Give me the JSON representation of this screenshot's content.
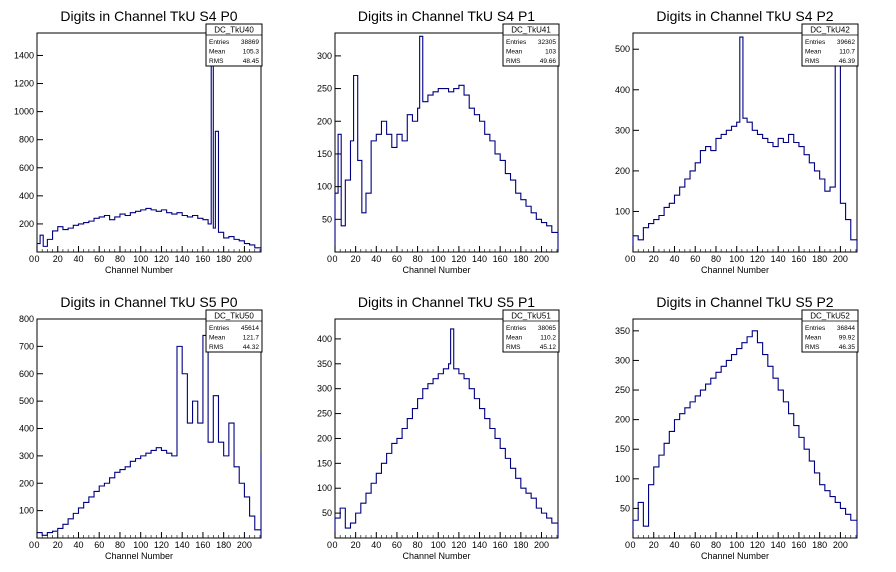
{
  "chart_data": [
    {
      "type": "histogram",
      "title": "Digits in Channel TkU S4 P0",
      "xlabel": "Channel Number",
      "xlim": [
        0,
        216
      ],
      "ylim": [
        0,
        1560
      ],
      "xticks": [
        0,
        20,
        40,
        60,
        80,
        100,
        120,
        140,
        160,
        180,
        200
      ],
      "yticks": [
        200,
        400,
        600,
        800,
        1000,
        1200,
        1400
      ],
      "color": "#000080",
      "stats": {
        "name": "DC_TkU40",
        "entries": "38869",
        "mean": "105.3",
        "rms": "48.45"
      },
      "series_points": [
        [
          0,
          60
        ],
        [
          3,
          120
        ],
        [
          6,
          40
        ],
        [
          10,
          90
        ],
        [
          15,
          150
        ],
        [
          20,
          180
        ],
        [
          25,
          160
        ],
        [
          30,
          170
        ],
        [
          35,
          190
        ],
        [
          40,
          200
        ],
        [
          45,
          210
        ],
        [
          50,
          220
        ],
        [
          55,
          240
        ],
        [
          60,
          250
        ],
        [
          65,
          260
        ],
        [
          70,
          230
        ],
        [
          75,
          250
        ],
        [
          80,
          270
        ],
        [
          85,
          260
        ],
        [
          90,
          280
        ],
        [
          95,
          290
        ],
        [
          100,
          300
        ],
        [
          105,
          310
        ],
        [
          110,
          300
        ],
        [
          115,
          290
        ],
        [
          120,
          300
        ],
        [
          125,
          280
        ],
        [
          130,
          270
        ],
        [
          135,
          280
        ],
        [
          140,
          260
        ],
        [
          145,
          250
        ],
        [
          150,
          260
        ],
        [
          155,
          240
        ],
        [
          160,
          230
        ],
        [
          165,
          200
        ],
        [
          168,
          1520
        ],
        [
          170,
          170
        ],
        [
          172,
          860
        ],
        [
          175,
          140
        ],
        [
          180,
          100
        ],
        [
          185,
          110
        ],
        [
          190,
          90
        ],
        [
          195,
          80
        ],
        [
          200,
          60
        ],
        [
          205,
          50
        ],
        [
          210,
          30
        ],
        [
          216,
          20
        ]
      ]
    },
    {
      "type": "histogram",
      "title": "Digits in Channel TkU S4 P1",
      "xlabel": "Channel Number",
      "xlim": [
        0,
        216
      ],
      "ylim": [
        0,
        335
      ],
      "xticks": [
        0,
        20,
        40,
        60,
        80,
        100,
        120,
        140,
        160,
        180,
        200
      ],
      "yticks": [
        50,
        100,
        150,
        200,
        250,
        300
      ],
      "color": "#000080",
      "stats": {
        "name": "DC_TkU41",
        "entries": "32305",
        "mean": "103",
        "rms": "49.66"
      },
      "series_points": [
        [
          0,
          90
        ],
        [
          3,
          180
        ],
        [
          6,
          40
        ],
        [
          10,
          110
        ],
        [
          15,
          170
        ],
        [
          18,
          270
        ],
        [
          22,
          140
        ],
        [
          26,
          60
        ],
        [
          30,
          90
        ],
        [
          35,
          170
        ],
        [
          40,
          180
        ],
        [
          45,
          200
        ],
        [
          50,
          180
        ],
        [
          55,
          160
        ],
        [
          60,
          180
        ],
        [
          65,
          170
        ],
        [
          70,
          210
        ],
        [
          75,
          200
        ],
        [
          80,
          220
        ],
        [
          82,
          330
        ],
        [
          85,
          230
        ],
        [
          90,
          240
        ],
        [
          95,
          245
        ],
        [
          100,
          250
        ],
        [
          105,
          250
        ],
        [
          110,
          245
        ],
        [
          115,
          250
        ],
        [
          120,
          255
        ],
        [
          125,
          240
        ],
        [
          130,
          220
        ],
        [
          135,
          210
        ],
        [
          140,
          200
        ],
        [
          145,
          180
        ],
        [
          150,
          170
        ],
        [
          155,
          150
        ],
        [
          160,
          140
        ],
        [
          165,
          120
        ],
        [
          170,
          110
        ],
        [
          175,
          90
        ],
        [
          180,
          80
        ],
        [
          185,
          70
        ],
        [
          190,
          60
        ],
        [
          195,
          50
        ],
        [
          200,
          45
        ],
        [
          205,
          40
        ],
        [
          210,
          30
        ],
        [
          216,
          25
        ]
      ]
    },
    {
      "type": "histogram",
      "title": "Digits in Channel TkU S4 P2",
      "xlabel": "Channel Number",
      "xlim": [
        0,
        216
      ],
      "ylim": [
        0,
        540
      ],
      "xticks": [
        0,
        20,
        40,
        60,
        80,
        100,
        120,
        140,
        160,
        180,
        200
      ],
      "yticks": [
        100,
        200,
        300,
        400,
        500
      ],
      "color": "#000080",
      "stats": {
        "name": "DC_TkU42",
        "entries": "39662",
        "mean": "110.7",
        "rms": "46.39"
      },
      "series_points": [
        [
          0,
          40
        ],
        [
          5,
          30
        ],
        [
          10,
          60
        ],
        [
          15,
          70
        ],
        [
          20,
          80
        ],
        [
          25,
          90
        ],
        [
          30,
          110
        ],
        [
          35,
          120
        ],
        [
          40,
          140
        ],
        [
          45,
          160
        ],
        [
          50,
          180
        ],
        [
          55,
          200
        ],
        [
          60,
          220
        ],
        [
          65,
          250
        ],
        [
          70,
          260
        ],
        [
          75,
          250
        ],
        [
          80,
          280
        ],
        [
          85,
          290
        ],
        [
          90,
          300
        ],
        [
          95,
          310
        ],
        [
          100,
          320
        ],
        [
          103,
          530
        ],
        [
          106,
          330
        ],
        [
          110,
          320
        ],
        [
          115,
          300
        ],
        [
          120,
          290
        ],
        [
          125,
          280
        ],
        [
          130,
          270
        ],
        [
          135,
          260
        ],
        [
          140,
          280
        ],
        [
          145,
          270
        ],
        [
          150,
          290
        ],
        [
          155,
          270
        ],
        [
          160,
          260
        ],
        [
          165,
          240
        ],
        [
          170,
          220
        ],
        [
          175,
          200
        ],
        [
          180,
          180
        ],
        [
          185,
          150
        ],
        [
          190,
          160
        ],
        [
          195,
          460
        ],
        [
          200,
          120
        ],
        [
          205,
          80
        ],
        [
          210,
          30
        ],
        [
          216,
          20
        ]
      ]
    },
    {
      "type": "histogram",
      "title": "Digits in Channel TkU S5 P0",
      "xlabel": "Channel Number",
      "xlim": [
        0,
        216
      ],
      "ylim": [
        0,
        800
      ],
      "xticks": [
        0,
        20,
        40,
        60,
        80,
        100,
        120,
        140,
        160,
        180,
        200
      ],
      "yticks": [
        100,
        200,
        300,
        400,
        500,
        600,
        700,
        800
      ],
      "color": "#000080",
      "stats": {
        "name": "DC_TkU50",
        "entries": "45614",
        "mean": "121.7",
        "rms": "44.32"
      },
      "series_points": [
        [
          0,
          20
        ],
        [
          5,
          10
        ],
        [
          10,
          20
        ],
        [
          15,
          25
        ],
        [
          20,
          35
        ],
        [
          25,
          50
        ],
        [
          30,
          70
        ],
        [
          35,
          90
        ],
        [
          40,
          110
        ],
        [
          45,
          130
        ],
        [
          50,
          150
        ],
        [
          55,
          170
        ],
        [
          60,
          190
        ],
        [
          65,
          200
        ],
        [
          70,
          220
        ],
        [
          75,
          240
        ],
        [
          80,
          250
        ],
        [
          85,
          260
        ],
        [
          90,
          280
        ],
        [
          95,
          290
        ],
        [
          100,
          300
        ],
        [
          105,
          310
        ],
        [
          110,
          320
        ],
        [
          115,
          330
        ],
        [
          120,
          320
        ],
        [
          125,
          310
        ],
        [
          130,
          300
        ],
        [
          135,
          700
        ],
        [
          140,
          600
        ],
        [
          145,
          420
        ],
        [
          150,
          500
        ],
        [
          155,
          420
        ],
        [
          160,
          740
        ],
        [
          165,
          350
        ],
        [
          170,
          520
        ],
        [
          175,
          350
        ],
        [
          180,
          300
        ],
        [
          185,
          420
        ],
        [
          190,
          260
        ],
        [
          195,
          200
        ],
        [
          200,
          150
        ],
        [
          205,
          80
        ],
        [
          210,
          30
        ],
        [
          216,
          310
        ]
      ]
    },
    {
      "type": "histogram",
      "title": "Digits in Channel TkU S5 P1",
      "xlabel": "Channel Number",
      "xlim": [
        0,
        216
      ],
      "ylim": [
        0,
        440
      ],
      "xticks": [
        0,
        20,
        40,
        60,
        80,
        100,
        120,
        140,
        160,
        180,
        200
      ],
      "yticks": [
        50,
        100,
        150,
        200,
        250,
        300,
        350,
        400
      ],
      "color": "#000080",
      "stats": {
        "name": "DC_TkU51",
        "entries": "38065",
        "mean": "110.2",
        "rms": "45.12"
      },
      "series_points": [
        [
          0,
          40
        ],
        [
          5,
          60
        ],
        [
          10,
          20
        ],
        [
          15,
          30
        ],
        [
          20,
          50
        ],
        [
          25,
          70
        ],
        [
          30,
          90
        ],
        [
          35,
          110
        ],
        [
          40,
          130
        ],
        [
          45,
          150
        ],
        [
          50,
          170
        ],
        [
          55,
          190
        ],
        [
          60,
          200
        ],
        [
          65,
          220
        ],
        [
          70,
          240
        ],
        [
          75,
          260
        ],
        [
          80,
          280
        ],
        [
          85,
          300
        ],
        [
          90,
          310
        ],
        [
          95,
          320
        ],
        [
          100,
          330
        ],
        [
          105,
          340
        ],
        [
          110,
          350
        ],
        [
          112,
          420
        ],
        [
          115,
          340
        ],
        [
          120,
          330
        ],
        [
          125,
          320
        ],
        [
          130,
          300
        ],
        [
          135,
          280
        ],
        [
          140,
          260
        ],
        [
          145,
          240
        ],
        [
          150,
          220
        ],
        [
          155,
          200
        ],
        [
          160,
          180
        ],
        [
          165,
          160
        ],
        [
          170,
          140
        ],
        [
          175,
          120
        ],
        [
          180,
          100
        ],
        [
          185,
          90
        ],
        [
          190,
          80
        ],
        [
          195,
          60
        ],
        [
          200,
          50
        ],
        [
          205,
          40
        ],
        [
          210,
          30
        ],
        [
          216,
          20
        ]
      ]
    },
    {
      "type": "histogram",
      "title": "Digits in Channel TkU S5 P2",
      "xlabel": "Channel Number",
      "xlim": [
        0,
        216
      ],
      "ylim": [
        0,
        370
      ],
      "xticks": [
        0,
        20,
        40,
        60,
        80,
        100,
        120,
        140,
        160,
        180,
        200
      ],
      "yticks": [
        50,
        100,
        150,
        200,
        250,
        300,
        350
      ],
      "color": "#000080",
      "stats": {
        "name": "DC_TkU52",
        "entries": "36844",
        "mean": "99.92",
        "rms": "46.35"
      },
      "series_points": [
        [
          0,
          30
        ],
        [
          5,
          60
        ],
        [
          10,
          20
        ],
        [
          15,
          90
        ],
        [
          20,
          120
        ],
        [
          25,
          140
        ],
        [
          30,
          160
        ],
        [
          35,
          180
        ],
        [
          40,
          200
        ],
        [
          45,
          210
        ],
        [
          50,
          220
        ],
        [
          55,
          230
        ],
        [
          60,
          240
        ],
        [
          65,
          250
        ],
        [
          70,
          260
        ],
        [
          75,
          270
        ],
        [
          80,
          280
        ],
        [
          85,
          290
        ],
        [
          90,
          300
        ],
        [
          95,
          310
        ],
        [
          100,
          320
        ],
        [
          105,
          330
        ],
        [
          110,
          340
        ],
        [
          115,
          350
        ],
        [
          120,
          330
        ],
        [
          125,
          310
        ],
        [
          130,
          290
        ],
        [
          135,
          270
        ],
        [
          140,
          250
        ],
        [
          145,
          230
        ],
        [
          150,
          210
        ],
        [
          155,
          190
        ],
        [
          160,
          170
        ],
        [
          165,
          150
        ],
        [
          170,
          130
        ],
        [
          175,
          110
        ],
        [
          180,
          90
        ],
        [
          185,
          80
        ],
        [
          190,
          70
        ],
        [
          195,
          60
        ],
        [
          200,
          50
        ],
        [
          205,
          40
        ],
        [
          210,
          30
        ],
        [
          216,
          20
        ]
      ]
    }
  ]
}
